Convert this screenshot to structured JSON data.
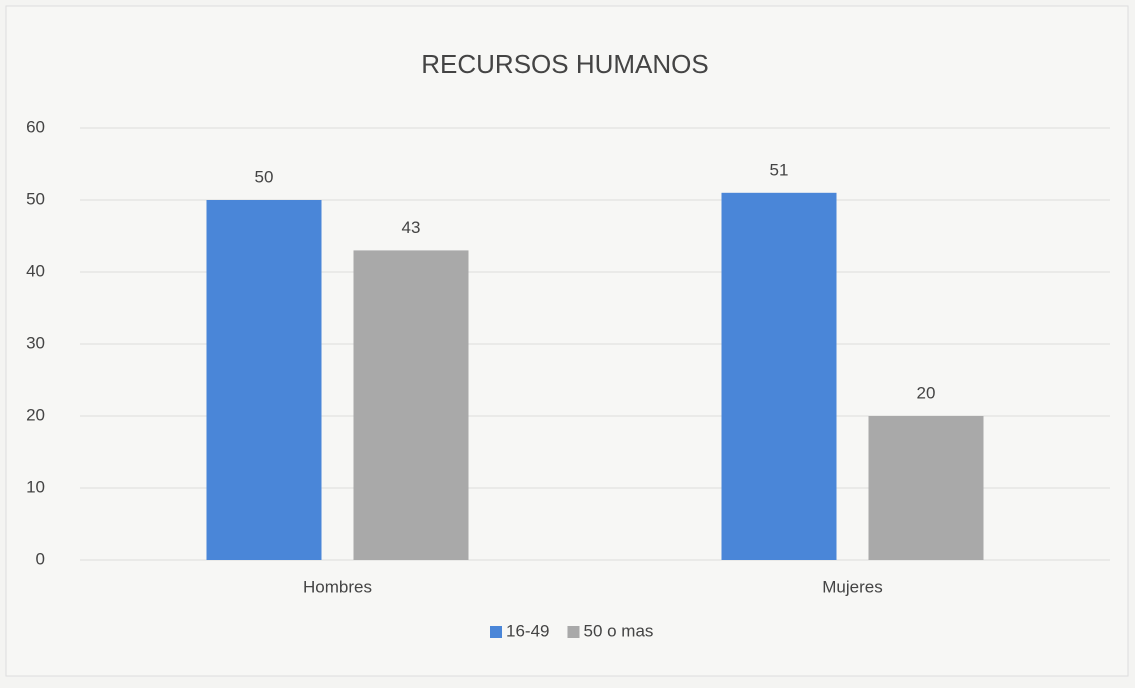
{
  "chart_data": {
    "type": "bar",
    "title": "RECURSOS HUMANOS",
    "categories": [
      "Hombres",
      "Mujeres"
    ],
    "series": [
      {
        "name": "16-49",
        "color": "#4a86d8",
        "values": [
          50,
          51
        ]
      },
      {
        "name": "50 o mas",
        "color": "#a9a9a9",
        "values": [
          43,
          20
        ]
      }
    ],
    "ylim": [
      0,
      60
    ],
    "yticks": [
      0,
      10,
      20,
      30,
      40,
      50,
      60
    ],
    "grid": true,
    "legend": "bottom"
  }
}
